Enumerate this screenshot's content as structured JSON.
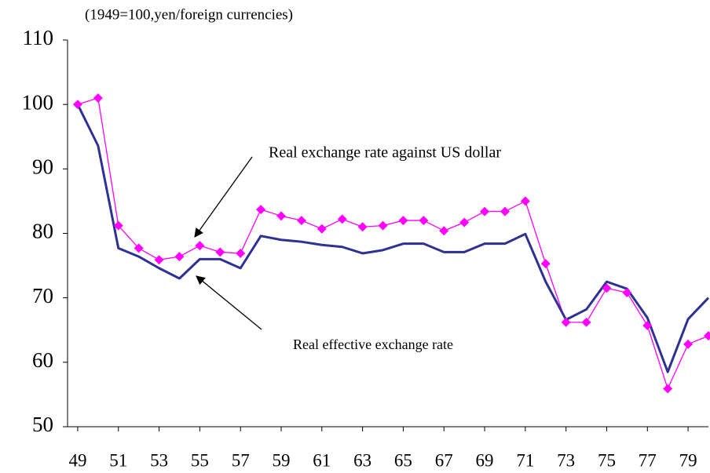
{
  "chart_data": {
    "type": "line",
    "subtitle": "(1949=100,yen/foreign currencies)",
    "x": [
      49,
      50,
      51,
      52,
      53,
      54,
      55,
      56,
      57,
      58,
      59,
      60,
      61,
      62,
      63,
      64,
      65,
      66,
      67,
      68,
      69,
      70,
      71,
      72,
      73,
      74,
      75,
      76,
      77,
      78,
      79,
      80
    ],
    "series": [
      {
        "name": "Real exchange rate against US dollar",
        "color": "#ff00ff",
        "marker": "diamond",
        "values": [
          100,
          101,
          81.2,
          77.7,
          75.9,
          76.4,
          78.1,
          77.1,
          76.9,
          83.7,
          82.7,
          82,
          80.7,
          82.2,
          81,
          81.2,
          82,
          82,
          80.4,
          81.7,
          83.4,
          83.4,
          85,
          75.3,
          66.2,
          66.2,
          71.5,
          70.8,
          65.7,
          55.9,
          62.8,
          64.1
        ]
      },
      {
        "name": "Real effective exchange rate",
        "color": "#2e3192",
        "marker": "none",
        "values": [
          100,
          93.6,
          77.7,
          76.4,
          74.6,
          73,
          76,
          76,
          74.6,
          79.6,
          79,
          78.7,
          78.2,
          77.9,
          76.9,
          77.4,
          78.4,
          78.4,
          77.1,
          77.1,
          78.4,
          78.4,
          79.9,
          72.5,
          66.6,
          68.2,
          72.5,
          71.4,
          66.9,
          58.5,
          66.7,
          70
        ]
      }
    ],
    "xlim": [
      48.5,
      80
    ],
    "xticks": [
      49,
      51,
      53,
      55,
      57,
      59,
      61,
      63,
      65,
      67,
      69,
      71,
      73,
      75,
      77,
      79
    ],
    "ylim": [
      50,
      110
    ],
    "yticks": [
      50,
      60,
      70,
      80,
      90,
      100,
      110
    ],
    "grid": false
  }
}
